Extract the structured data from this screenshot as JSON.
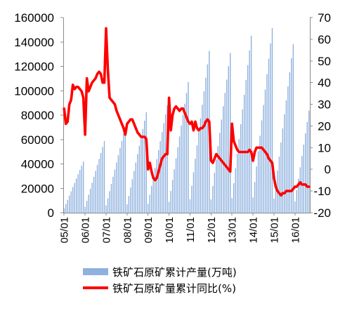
{
  "chart_data": {
    "type": "bar",
    "categories": [
      "05/01",
      "05/02",
      "05/03",
      "05/04",
      "05/05",
      "05/06",
      "05/07",
      "05/08",
      "05/09",
      "05/10",
      "05/11",
      "05/12",
      "06/01",
      "06/02",
      "06/03",
      "06/04",
      "06/05",
      "06/06",
      "06/07",
      "06/08",
      "06/09",
      "06/10",
      "06/11",
      "06/12",
      "07/01",
      "07/02",
      "07/03",
      "07/04",
      "07/05",
      "07/06",
      "07/07",
      "07/08",
      "07/09",
      "07/10",
      "07/11",
      "07/12",
      "08/01",
      "08/02",
      "08/03",
      "08/04",
      "08/05",
      "08/06",
      "08/07",
      "08/08",
      "08/09",
      "08/10",
      "08/11",
      "08/12",
      "09/01",
      "09/02",
      "09/03",
      "09/04",
      "09/05",
      "09/06",
      "09/07",
      "09/08",
      "09/09",
      "09/10",
      "09/11",
      "09/12",
      "10/01",
      "10/02",
      "10/03",
      "10/04",
      "10/05",
      "10/06",
      "10/07",
      "10/08",
      "10/09",
      "10/10",
      "10/11",
      "10/12",
      "11/01",
      "11/02",
      "11/03",
      "11/04",
      "11/05",
      "11/06",
      "11/07",
      "11/08",
      "11/09",
      "11/10",
      "11/11",
      "11/12",
      "12/01",
      "12/02",
      "12/03",
      "12/04",
      "12/05",
      "12/06",
      "12/07",
      "12/08",
      "12/09",
      "12/10",
      "12/11",
      "12/12",
      "13/01",
      "13/02",
      "13/03",
      "13/04",
      "13/05",
      "13/06",
      "13/07",
      "13/08",
      "13/09",
      "13/10",
      "13/11",
      "13/12",
      "14/01",
      "14/02",
      "14/03",
      "14/04",
      "14/05",
      "14/06",
      "14/07",
      "14/08",
      "14/09",
      "14/10",
      "14/11",
      "14/12",
      "15/01",
      "15/02",
      "15/03",
      "15/04",
      "15/05",
      "15/06",
      "15/07",
      "15/08",
      "15/09",
      "15/10",
      "15/11",
      "15/12",
      "16/01",
      "16/02",
      "16/03",
      "16/04",
      "16/05",
      "16/06",
      "16/07",
      "16/08",
      "16/09"
    ],
    "xticks": [
      "05/01",
      "06/01",
      "07/01",
      "08/01",
      "09/01",
      "10/01",
      "11/01",
      "12/01",
      "13/01",
      "14/01",
      "15/01",
      "16/01"
    ],
    "series": [
      {
        "name": "铁矿石原矿累计产量(万吨)",
        "type": "bar",
        "axis": "left",
        "color": "#8eb1de",
        "values": [
          3500,
          7000,
          10500,
          14000,
          17500,
          21000,
          24500,
          28000,
          31500,
          35000,
          38500,
          42000,
          4900,
          9800,
          14700,
          19600,
          24500,
          29400,
          34300,
          39200,
          44100,
          49000,
          53900,
          58800,
          5900,
          11800,
          17700,
          23600,
          29500,
          35400,
          41200,
          47100,
          53000,
          58900,
          64800,
          70700,
          6900,
          13700,
          20600,
          27500,
          34300,
          41200,
          48100,
          54900,
          61800,
          68700,
          75500,
          82400,
          7300,
          14700,
          22000,
          29300,
          36700,
          44000,
          51300,
          58700,
          66000,
          73300,
          80700,
          88000,
          8900,
          17900,
          26800,
          35700,
          44600,
          53600,
          62500,
          71400,
          80400,
          89300,
          98200,
          107200,
          11100,
          22100,
          33200,
          44200,
          55300,
          66300,
          77400,
          88500,
          99500,
          110600,
          121600,
          132700,
          10900,
          21800,
          32700,
          43700,
          54600,
          65500,
          76400,
          87300,
          98200,
          109100,
          120100,
          131000,
          12100,
          24200,
          36300,
          48400,
          60500,
          72600,
          84600,
          96700,
          108800,
          120900,
          133000,
          145100,
          12600,
          25200,
          37900,
          50500,
          63100,
          75700,
          88300,
          100900,
          113600,
          126200,
          138800,
          151400,
          11500,
          23000,
          34500,
          46000,
          57600,
          69100,
          80600,
          92100,
          103600,
          115100,
          126600,
          138100,
          9300,
          18600,
          27900,
          37200,
          46500,
          55800,
          65100,
          74400,
          83700
        ]
      },
      {
        "name": "铁矿石原矿量累计同比(%)",
        "type": "line",
        "axis": "right",
        "color": "#ff0000",
        "values": [
          28,
          21,
          22,
          30,
          32,
          39,
          37,
          38,
          38,
          37,
          36,
          33,
          16,
          42,
          36,
          38,
          40,
          41,
          42,
          44,
          45,
          44,
          40,
          40,
          65,
          46,
          33,
          32,
          31,
          30,
          27,
          25,
          23,
          21,
          19,
          16,
          21,
          22,
          23,
          23,
          21,
          19,
          17,
          16,
          15,
          15,
          15,
          14,
          0,
          3,
          -1,
          -4,
          -5,
          -4,
          -1,
          2,
          5,
          6,
          7,
          7,
          33,
          18,
          25,
          28,
          29,
          28,
          27,
          28,
          28,
          26,
          24,
          22,
          21,
          22,
          18,
          22,
          19,
          18,
          19,
          19,
          20,
          22,
          23,
          22,
          4,
          3,
          5,
          7,
          6,
          5,
          4,
          3,
          2,
          1,
          0,
          -1,
          21,
          13,
          11,
          9,
          8,
          8,
          8,
          8,
          8,
          8,
          9,
          8,
          4,
          8,
          10,
          10,
          10,
          10,
          9,
          8,
          7,
          5,
          4,
          3,
          -4,
          -8,
          -10,
          -11,
          -12,
          -11,
          -11,
          -10,
          -10,
          -10,
          -10,
          -9,
          -8,
          -8,
          -7,
          -6,
          -7,
          -7,
          -7,
          -8,
          -8
        ]
      }
    ],
    "ylim_left": [
      0,
      160000
    ],
    "yticks_left": [
      0,
      20000,
      40000,
      60000,
      80000,
      100000,
      120000,
      140000,
      160000
    ],
    "ylim_right": [
      -20,
      70
    ],
    "yticks_right": [
      -20,
      -10,
      0,
      10,
      20,
      30,
      40,
      50,
      60,
      70
    ],
    "grid": false,
    "legend": "bottom"
  }
}
